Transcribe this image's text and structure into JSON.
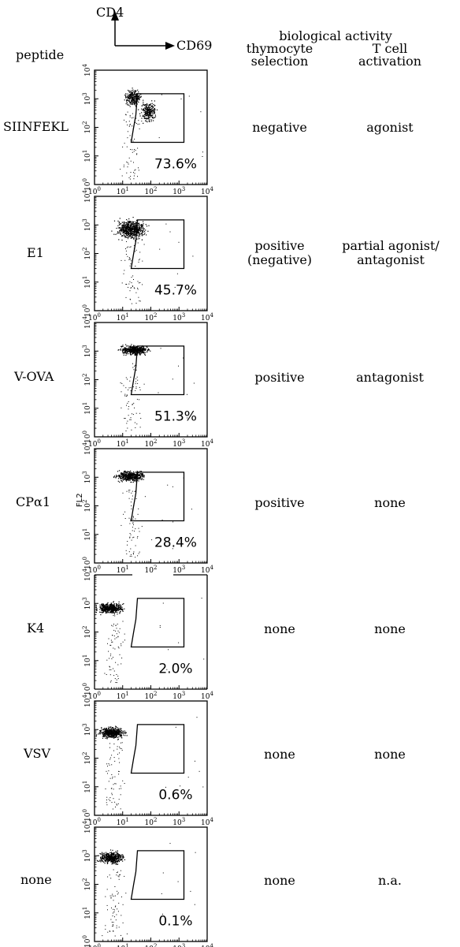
{
  "header": {
    "y_axis_marker": "CD4",
    "x_axis_marker": "CD69",
    "peptide_label": "peptide",
    "bio_activity_label": "biological activity",
    "col1_line1": "thymocyte",
    "col1_line2": "selection",
    "col2_line1": "T cell",
    "col2_line2": "activation"
  },
  "axis_tick_labels": [
    "10^0",
    "10^1",
    "10^2",
    "10^3",
    "10^4"
  ],
  "y_axis_label": "FL2",
  "chart_data": [
    {
      "type": "scatter",
      "peptide": "SIINFEKL",
      "gate_percent": "73.6%",
      "thymocyte_selection": "negative",
      "t_cell_activation": "agonist",
      "xlim": [
        1,
        10000
      ],
      "ylim": [
        1,
        10000
      ],
      "scale": "log",
      "gate_x": [
        20,
        1500
      ],
      "gate_y": [
        30,
        1500
      ]
    },
    {
      "type": "scatter",
      "peptide": "E1",
      "gate_percent": "45.7%",
      "thymocyte_selection_lines": [
        "positive",
        "(negative)"
      ],
      "t_cell_activation_lines": [
        "partial agonist/",
        "antagonist"
      ],
      "xlim": [
        1,
        10000
      ],
      "ylim": [
        1,
        10000
      ],
      "scale": "log",
      "gate_x": [
        20,
        1500
      ],
      "gate_y": [
        30,
        1500
      ]
    },
    {
      "type": "scatter",
      "peptide": "V-OVA",
      "gate_percent": "51.3%",
      "thymocyte_selection": "positive",
      "t_cell_activation": "antagonist",
      "xlim": [
        1,
        10000
      ],
      "ylim": [
        1,
        10000
      ],
      "scale": "log",
      "gate_x": [
        20,
        1500
      ],
      "gate_y": [
        30,
        1500
      ]
    },
    {
      "type": "scatter",
      "peptide": "CPα1",
      "gate_percent": "28.4%",
      "thymocyte_selection": "positive",
      "t_cell_activation": "none",
      "xlim": [
        1,
        10000
      ],
      "ylim": [
        1,
        10000
      ],
      "scale": "log",
      "gate_x": [
        20,
        1500
      ],
      "gate_y": [
        30,
        1500
      ]
    },
    {
      "type": "scatter",
      "peptide": "K4",
      "gate_percent": "2.0%",
      "thymocyte_selection": "none",
      "t_cell_activation": "none",
      "xlim": [
        1,
        10000
      ],
      "ylim": [
        1,
        10000
      ],
      "scale": "log",
      "gate_x": [
        20,
        1500
      ],
      "gate_y": [
        30,
        1500
      ]
    },
    {
      "type": "scatter",
      "peptide": "VSV",
      "gate_percent": "0.6%",
      "thymocyte_selection": "none",
      "t_cell_activation": "none",
      "xlim": [
        1,
        10000
      ],
      "ylim": [
        1,
        10000
      ],
      "scale": "log",
      "gate_x": [
        20,
        1500
      ],
      "gate_y": [
        30,
        1500
      ]
    },
    {
      "type": "scatter",
      "peptide": "none",
      "gate_percent": "0.1%",
      "thymocyte_selection": "none",
      "t_cell_activation": "n.a.",
      "xlim": [
        1,
        10000
      ],
      "ylim": [
        1,
        10000
      ],
      "scale": "log",
      "gate_x": [
        20,
        1500
      ],
      "gate_y": [
        30,
        1500
      ]
    }
  ]
}
